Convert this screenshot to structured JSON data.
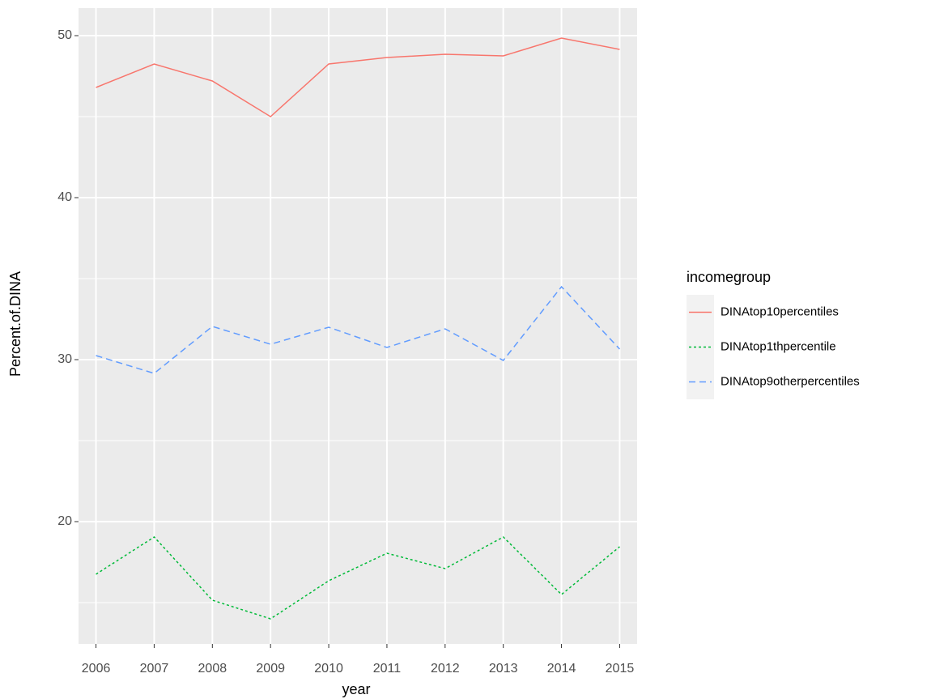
{
  "chart_data": {
    "type": "line",
    "x_label": "year",
    "y_label": "Percent.of.DINA",
    "x": [
      2006,
      2007,
      2008,
      2009,
      2010,
      2011,
      2012,
      2013,
      2014,
      2015
    ],
    "series": [
      {
        "name": "DINAtop10percentiles",
        "color": "#f8766d",
        "linetype": "solid",
        "values": [
          46.8,
          48.25,
          47.2,
          45.0,
          48.25,
          48.65,
          48.85,
          48.75,
          49.85,
          49.15
        ]
      },
      {
        "name": "DINAtop1thpercentile",
        "color": "#00ba38",
        "linetype": "dotted",
        "values": [
          16.75,
          19.05,
          15.15,
          14.0,
          16.35,
          18.05,
          17.1,
          19.05,
          15.5,
          18.45
        ]
      },
      {
        "name": "DINAtop9otherpercentiles",
        "color": "#619cff",
        "linetype": "dashed",
        "values": [
          30.25,
          29.15,
          32.05,
          30.95,
          32.0,
          30.75,
          31.9,
          29.95,
          34.5,
          30.65
        ]
      }
    ],
    "legend_title": "incomegroup",
    "legend": "right",
    "xlim": [
      2005.7,
      2015.3
    ],
    "xticks": [
      2006,
      2007,
      2008,
      2009,
      2010,
      2011,
      2012,
      2013,
      2014,
      2015
    ],
    "ylim": [
      12.45,
      51.7
    ],
    "yticks": [
      20,
      30,
      40,
      50
    ],
    "minor_yticks": [
      15,
      25,
      35,
      45
    ],
    "grid": true
  }
}
